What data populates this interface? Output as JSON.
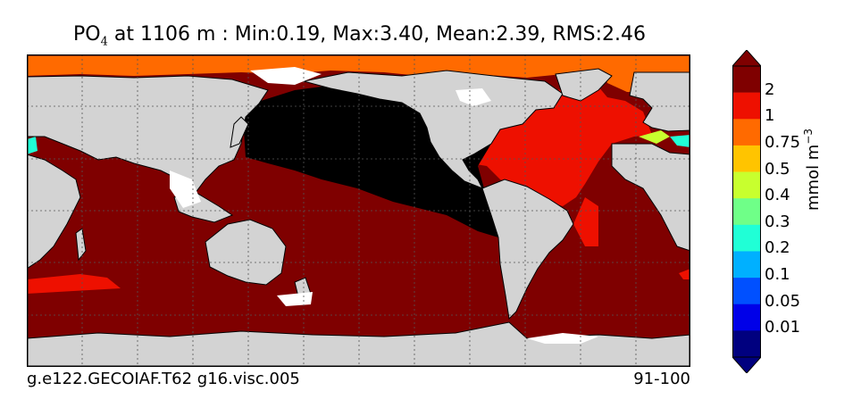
{
  "title": {
    "variable": "PO",
    "subscript": "4",
    "rest": "at 1106 m : Min:0.19, Max:3.40, Mean:2.39, RMS:2.46"
  },
  "footer": {
    "case": "g.e122.GECOIAF.T62 g16.visc.005",
    "years": "91-100"
  },
  "colorbar": {
    "unit_base": "mmol m",
    "unit_exp": "−3",
    "levels": [
      "2",
      "1",
      "0.75",
      "0.5",
      "0.4",
      "0.3",
      "0.2",
      "0.1",
      "0.05",
      "0.01"
    ],
    "colors": [
      "#7f0000",
      "#ee1000",
      "#ff6a00",
      "#ffc400",
      "#c8ff2e",
      "#6fff88",
      "#20ffd6",
      "#00b0ff",
      "#0050ff",
      "#0000e8",
      "#00007f"
    ]
  },
  "map_colors": {
    "land": "#d3d3d3",
    "no_data": "#ffffff",
    "pacific": "#000000",
    "indian_southern_atlantic": "#7f0000",
    "north_atlantic": "#ee1000",
    "arctic": "#ff6a00",
    "mediterranean": "#c8ff2e",
    "red_sea": "#20ffd6"
  }
}
